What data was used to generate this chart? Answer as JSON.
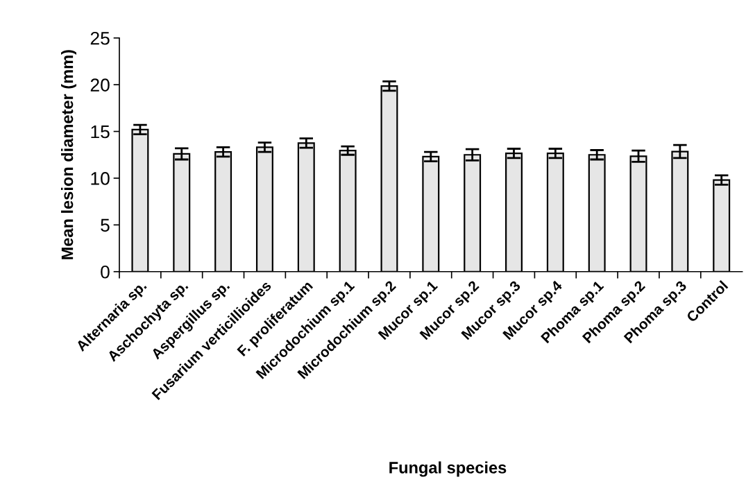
{
  "chart_data": {
    "type": "bar",
    "xlabel": "Fungal species",
    "ylabel": "Mean lesion diameter (mm)",
    "categories": [
      "Alternaria sp.",
      "Aschochyta sp.",
      "Aspergillus sp.",
      "Fusarium verticillioides",
      "F. proliferatum",
      "Microdochium sp.1",
      "Microdochium sp.2",
      "Mucor sp.1",
      "Mucor sp.2",
      "Mucor sp.3",
      "Mucor sp.4",
      "Phoma sp.1",
      "Phoma sp.2",
      "Phoma sp.3",
      "Control"
    ],
    "values": [
      15.2,
      12.6,
      12.8,
      13.3,
      13.75,
      12.95,
      19.85,
      12.3,
      12.5,
      12.65,
      12.65,
      12.5,
      12.35,
      12.85,
      9.8
    ],
    "errors": [
      0.5,
      0.6,
      0.5,
      0.5,
      0.5,
      0.45,
      0.5,
      0.5,
      0.6,
      0.5,
      0.5,
      0.5,
      0.6,
      0.7,
      0.5
    ],
    "color": "#e6e6e6",
    "ylim": [
      0,
      25
    ],
    "yticks": [
      0,
      5,
      10,
      15,
      20,
      25
    ],
    "grid": false
  }
}
